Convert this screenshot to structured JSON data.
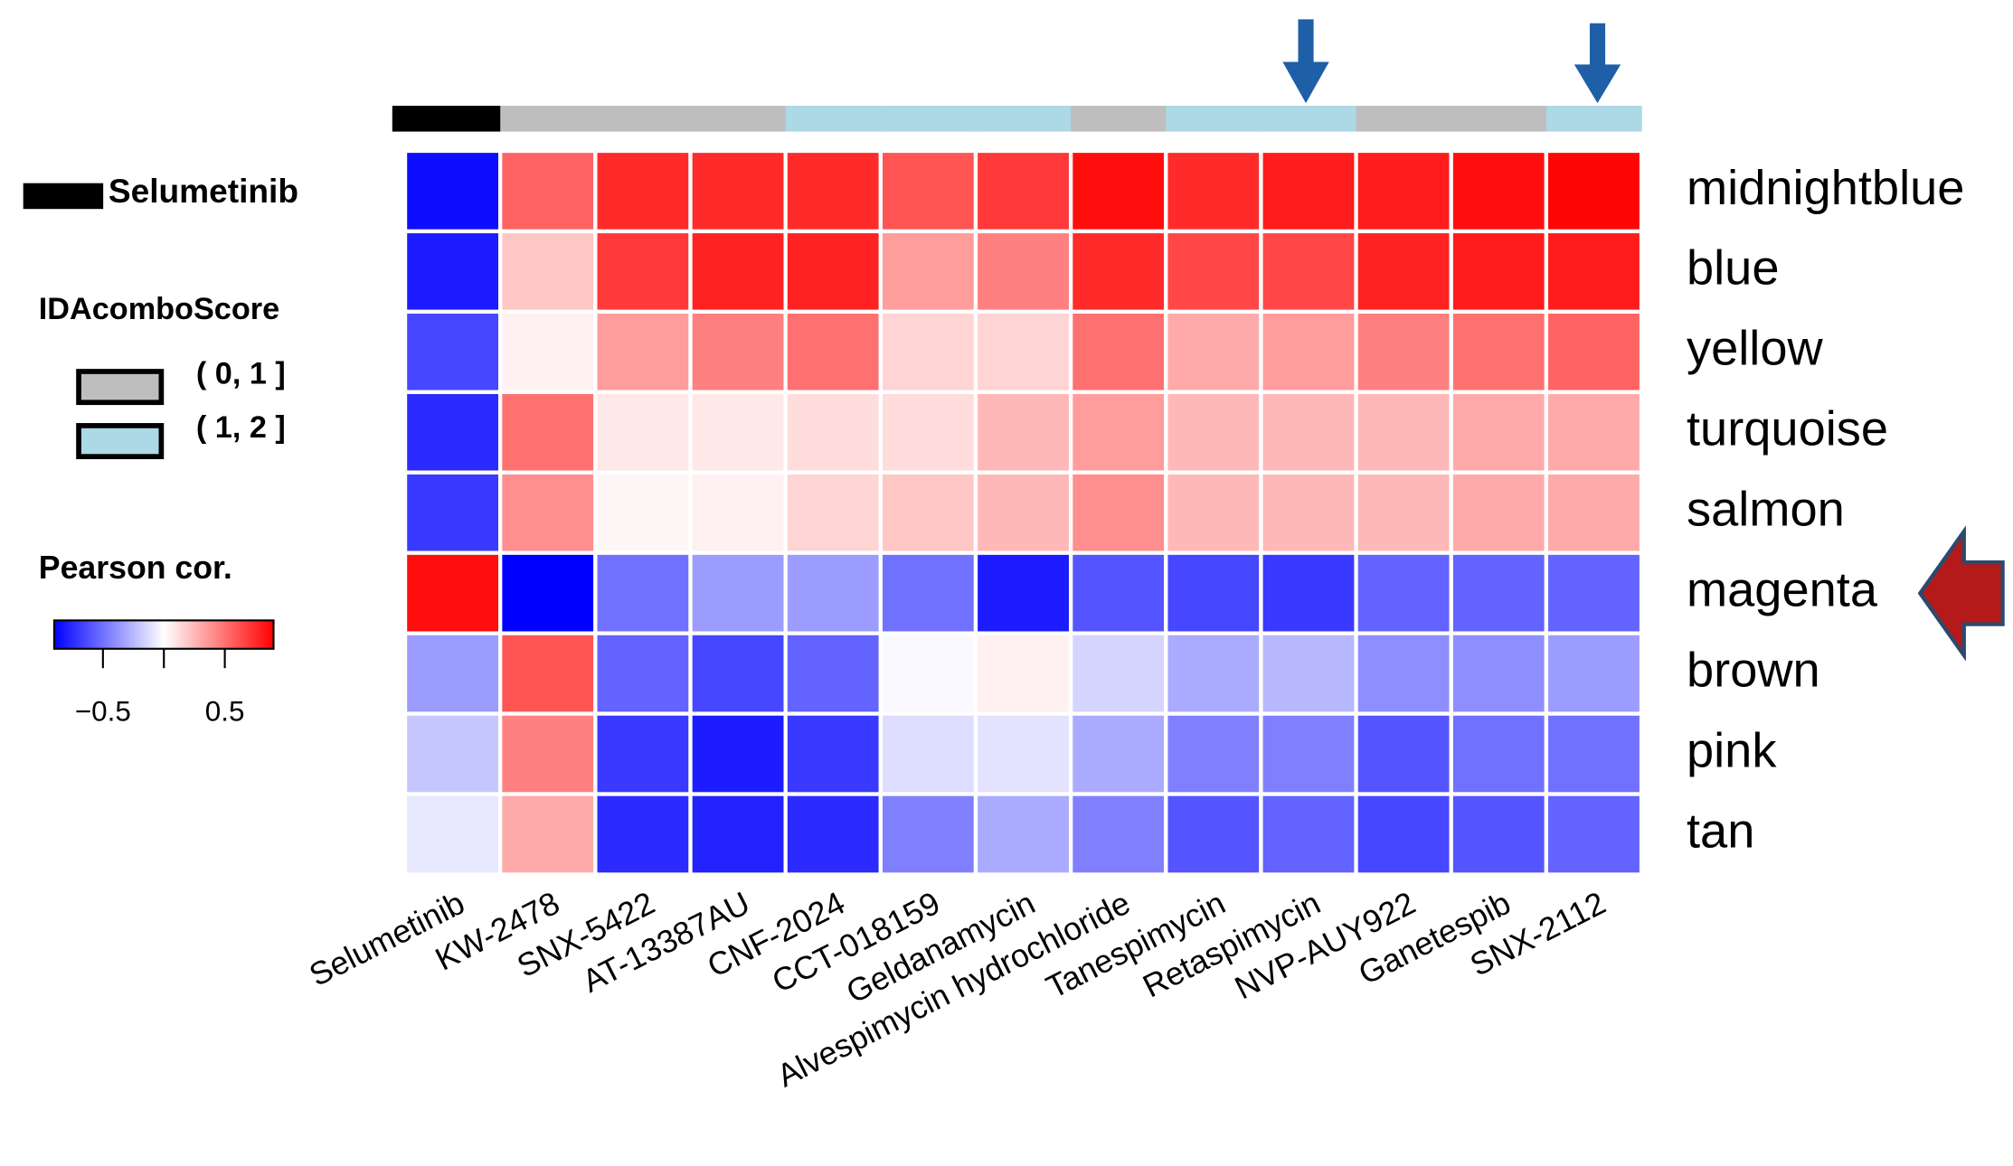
{
  "chart_data": {
    "type": "heatmap",
    "columns": [
      "Selumetinib",
      "KW-2478",
      "SNX-5422",
      "AT-13387AU",
      "CNF-2024",
      "CCT-018159",
      "Geldanamycin",
      "Alvespimycin hydrochloride",
      "Tanespimycin",
      "Retaspimycin",
      "NVP-AUY922",
      "Ganetespib",
      "SNX-2112"
    ],
    "rows": [
      "midnightblue",
      "blue",
      "yellow",
      "turquoise",
      "salmon",
      "magenta",
      "brown",
      "pink",
      "tan"
    ],
    "values": [
      [
        -0.85,
        0.55,
        0.75,
        0.75,
        0.75,
        0.6,
        0.7,
        0.85,
        0.75,
        0.8,
        0.8,
        0.85,
        0.88
      ],
      [
        -0.8,
        0.2,
        0.7,
        0.78,
        0.78,
        0.35,
        0.45,
        0.75,
        0.65,
        0.65,
        0.78,
        0.8,
        0.8
      ],
      [
        -0.65,
        0.05,
        0.35,
        0.45,
        0.5,
        0.15,
        0.15,
        0.5,
        0.3,
        0.35,
        0.45,
        0.5,
        0.55
      ],
      [
        -0.75,
        0.5,
        0.08,
        0.08,
        0.12,
        0.12,
        0.25,
        0.35,
        0.25,
        0.25,
        0.25,
        0.3,
        0.3
      ],
      [
        -0.7,
        0.4,
        0.03,
        0.05,
        0.15,
        0.2,
        0.25,
        0.4,
        0.25,
        0.25,
        0.25,
        0.3,
        0.3
      ],
      [
        0.85,
        -0.9,
        -0.5,
        -0.35,
        -0.35,
        -0.5,
        -0.8,
        -0.6,
        -0.65,
        -0.7,
        -0.55,
        -0.55,
        -0.55
      ],
      [
        -0.35,
        0.6,
        -0.55,
        -0.65,
        -0.55,
        -0.02,
        0.05,
        -0.15,
        -0.3,
        -0.25,
        -0.4,
        -0.4,
        -0.35
      ],
      [
        -0.2,
        0.45,
        -0.7,
        -0.8,
        -0.7,
        -0.12,
        -0.1,
        -0.3,
        -0.45,
        -0.45,
        -0.6,
        -0.5,
        -0.5
      ],
      [
        -0.08,
        0.3,
        -0.75,
        -0.78,
        -0.75,
        -0.45,
        -0.3,
        -0.45,
        -0.6,
        -0.55,
        -0.65,
        -0.6,
        -0.55
      ]
    ],
    "clim": [
      -0.9,
      0.9
    ],
    "colors": [
      "#0000ff",
      "#ffffff",
      "#ff0000"
    ],
    "colorbar_title": "Pearson cor.",
    "colorbar_ticks": [
      {
        "value": -0.5,
        "label": "−0.5"
      },
      {
        "value": 0,
        "label": null
      },
      0.5
    ],
    "column_groups": [
      0,
      1,
      1,
      1,
      2,
      2,
      2,
      1,
      2,
      2,
      1,
      1,
      2
    ],
    "groups": [
      {
        "name": "Selumetinib",
        "color": "#000000"
      },
      {
        "name": "( 0, 1 ]",
        "color": "#bebebe"
      },
      {
        "name": "( 1, 2 ]",
        "color": "#add8e6"
      }
    ],
    "groups_title": "IDAcomboScore"
  }
}
